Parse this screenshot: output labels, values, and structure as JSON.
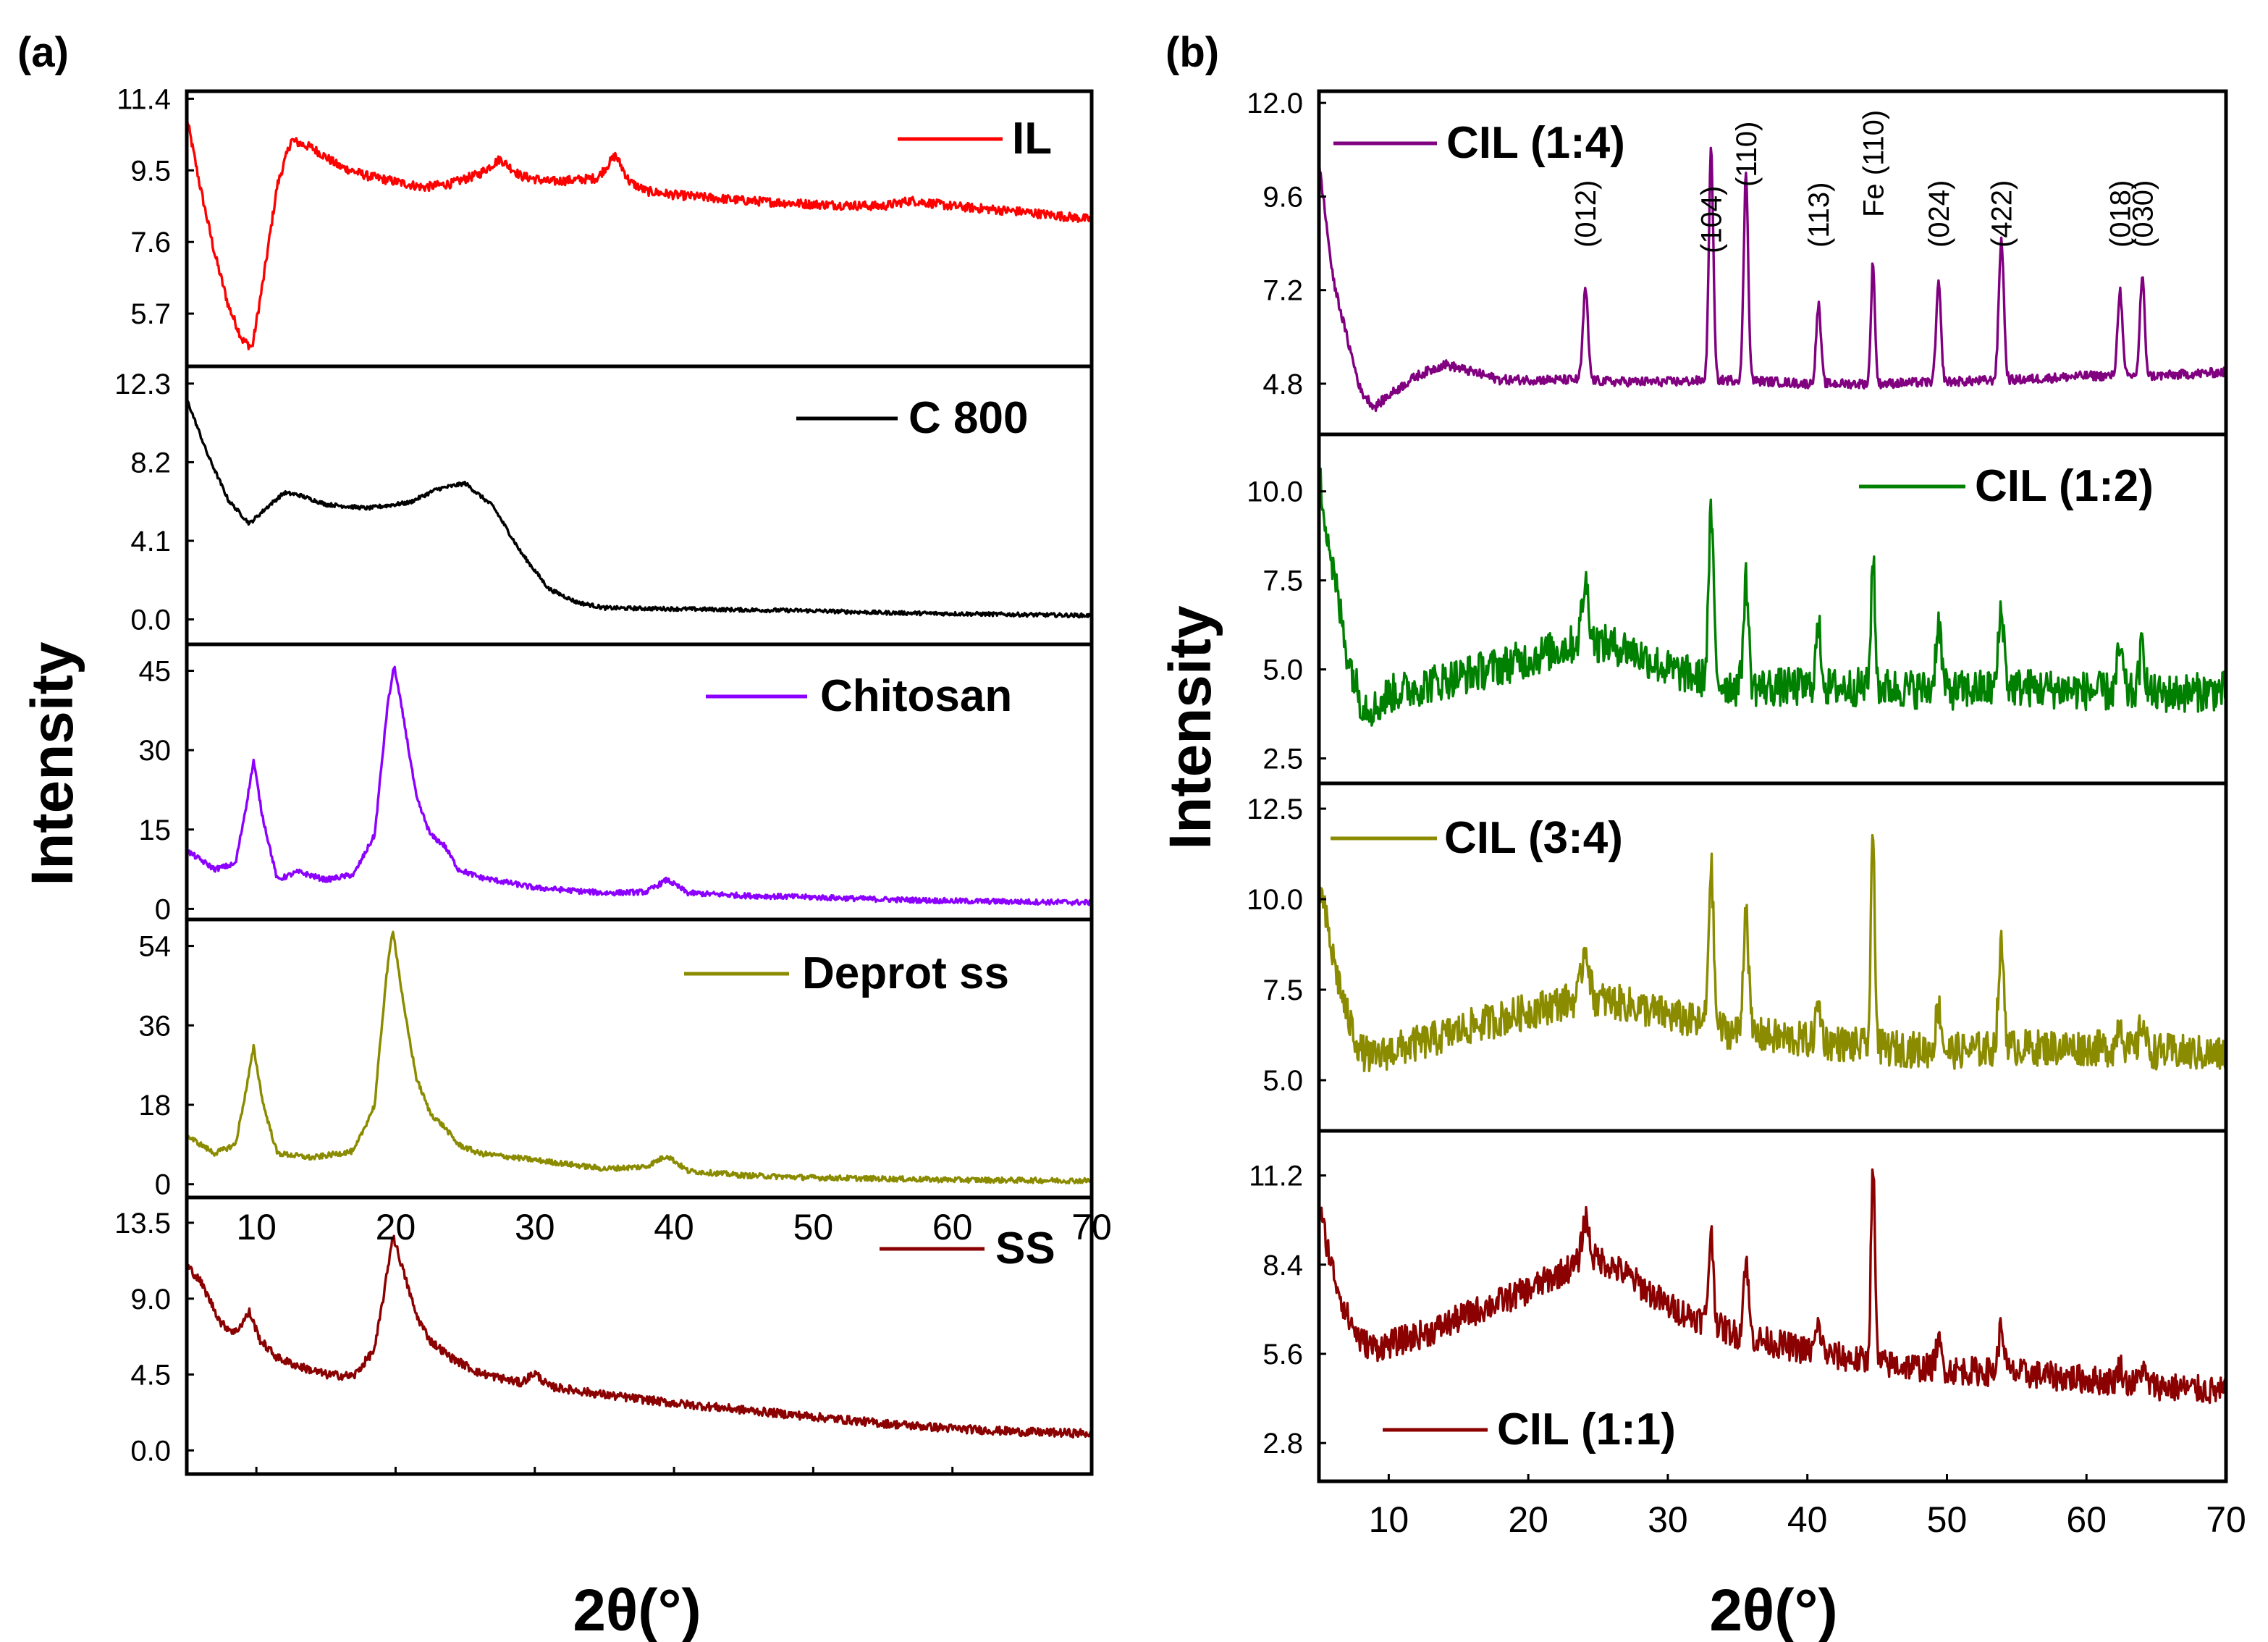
{
  "figure": {
    "panel_a_label": "(a)",
    "panel_b_label": "(b)",
    "ylabel": "Intensity",
    "xlabel": "2θ(°)"
  },
  "chart_data": [
    {
      "id": "a",
      "type": "line",
      "title": "(a)",
      "xlabel": "2θ(°)",
      "ylabel": "Intensity",
      "xlim": [
        5,
        70
      ],
      "xticks": [
        10,
        20,
        30,
        40,
        50,
        60,
        70
      ],
      "panels": [
        {
          "name": "IL",
          "color": "#ff0000",
          "ylim": [
            4.3,
            11.6
          ],
          "yticks": [
            "11.4",
            "9.5",
            "7.6",
            "5.7"
          ],
          "noise": 0.12,
          "x": [
            5,
            6,
            7,
            8,
            9,
            9.7,
            10.5,
            11.5,
            12.5,
            14,
            16,
            18,
            20,
            22,
            24,
            26,
            27.5,
            29,
            31,
            33,
            34.5,
            35.8,
            36.8,
            38,
            40,
            45,
            50,
            55,
            57,
            60,
            65,
            70
          ],
          "y": [
            10.9,
            9.0,
            7.3,
            5.9,
            5.0,
            4.8,
            6.6,
            9.1,
            10.3,
            10.1,
            9.6,
            9.35,
            9.2,
            9.05,
            9.15,
            9.4,
            9.8,
            9.35,
            9.2,
            9.25,
            9.3,
            9.9,
            9.2,
            8.95,
            8.85,
            8.7,
            8.6,
            8.55,
            8.7,
            8.55,
            8.4,
            8.2
          ]
        },
        {
          "name": "C 800",
          "color": "#000000",
          "ylim": [
            -1.3,
            13.2
          ],
          "yticks": [
            "12.3",
            "8.2",
            "4.1",
            "0.0"
          ],
          "noise": 0.1,
          "x": [
            5,
            6.5,
            8,
            9.5,
            11,
            12,
            13,
            15,
            18,
            21,
            23,
            25,
            27,
            29,
            31,
            33,
            35,
            40,
            45,
            50,
            55,
            60,
            65,
            70
          ],
          "y": [
            11.5,
            8.6,
            6.2,
            5.0,
            6.0,
            6.6,
            6.5,
            6.0,
            5.8,
            6.1,
            6.8,
            7.1,
            5.9,
            3.5,
            1.6,
            0.9,
            0.6,
            0.55,
            0.5,
            0.45,
            0.35,
            0.3,
            0.25,
            0.2
          ]
        },
        {
          "name": "Chitosan",
          "color": "#8b00ff",
          "ylim": [
            -2,
            50
          ],
          "yticks": [
            "45",
            "30",
            "15",
            "0"
          ],
          "noise": 0.5,
          "x": [
            5,
            7,
            8.5,
            9.3,
            9.8,
            10.4,
            11.5,
            13,
            15,
            17,
            18.5,
            19.4,
            19.9,
            20.7,
            21.5,
            22.5,
            23.5,
            24.5,
            26,
            28,
            30,
            35,
            38,
            39.5,
            41,
            45,
            50,
            55,
            60,
            70
          ],
          "y": [
            11,
            7.5,
            8.5,
            20,
            28,
            18,
            5.5,
            7,
            5.5,
            6.5,
            14,
            38,
            46,
            34,
            21,
            14,
            12,
            7.5,
            6,
            5,
            4,
            3,
            3.2,
            5.5,
            3,
            2.5,
            2.2,
            1.8,
            1.5,
            1.2
          ]
        },
        {
          "name": "Deprot ss",
          "color": "#8b8b00",
          "ylim": [
            -3,
            60
          ],
          "yticks": [
            "54",
            "36",
            "18",
            "0"
          ],
          "noise": 0.6,
          "x": [
            5,
            7,
            8.5,
            9.3,
            9.8,
            10.5,
            11.5,
            14,
            17,
            18.5,
            19.3,
            19.8,
            20.6,
            21.5,
            22.5,
            23.5,
            24.5,
            26,
            30,
            35,
            38,
            39.5,
            41,
            45,
            50,
            60,
            70
          ],
          "y": [
            11,
            7,
            9,
            22,
            31,
            18,
            7,
            6,
            7.5,
            18,
            46,
            58,
            40,
            24,
            16,
            13,
            9,
            7,
            5.5,
            3.5,
            4,
            6.5,
            3,
            2,
            1.5,
            1,
            0.8
          ]
        },
        {
          "name": "SS",
          "color": "#8b0000",
          "ylim": [
            -1.4,
            15
          ],
          "yticks": [
            "13.5",
            "9.0",
            "4.5",
            "0.0"
          ],
          "noise": 0.25,
          "x": [
            5,
            6,
            7.5,
            8.5,
            9.5,
            10.3,
            11.5,
            13,
            15,
            17,
            18.5,
            19.3,
            19.8,
            20.6,
            21.5,
            22.5,
            24,
            26,
            29,
            30,
            31,
            35,
            40,
            45,
            50,
            55,
            60,
            65,
            70
          ],
          "y": [
            11.0,
            10.0,
            7.5,
            7.0,
            8.2,
            6.5,
            5.5,
            5.0,
            4.5,
            4.4,
            6.0,
            10.0,
            12.8,
            10.5,
            8.0,
            6.5,
            5.5,
            4.6,
            4.0,
            4.6,
            3.8,
            3.3,
            2.8,
            2.4,
            2.0,
            1.6,
            1.3,
            1.1,
            1.0
          ]
        }
      ]
    },
    {
      "id": "b",
      "type": "line",
      "title": "(b)",
      "xlabel": "2θ(°)",
      "ylabel": "Intensity",
      "xlim": [
        5,
        70
      ],
      "xticks": [
        10,
        20,
        30,
        40,
        50,
        60,
        70
      ],
      "peaks": [
        {
          "label": "(012)",
          "x": 24.1,
          "color": "#000000"
        },
        {
          "label": "(104)",
          "x": 33.1,
          "color": "#000000"
        },
        {
          "label": "(110)",
          "x": 35.6,
          "color": "#000000"
        },
        {
          "label": "(113)",
          "x": 40.8,
          "color": "#000000"
        },
        {
          "label": "Fe (110)",
          "x": 44.7,
          "color": "#e8107f"
        },
        {
          "label": "(024)",
          "x": 49.4,
          "color": "#000000"
        },
        {
          "label": "(422)",
          "x": 53.9,
          "color": "#000000"
        },
        {
          "label": "(018)",
          "x": 62.4,
          "color": "#000000"
        },
        {
          "label": "(030)",
          "x": 64.0,
          "color": "#000000"
        }
      ],
      "panels": [
        {
          "name": "CIL (1:4)",
          "color": "#800080",
          "ylim": [
            3.5,
            12.3
          ],
          "yticks": [
            "12.0",
            "9.6",
            "7.2",
            "4.8"
          ],
          "noise": 0.12,
          "x": [
            5,
            6,
            7,
            8,
            9,
            10,
            12,
            14,
            16,
            18,
            20,
            22,
            24,
            26,
            30,
            35,
            40,
            45,
            50,
            55,
            60,
            65,
            70
          ],
          "y": [
            10.5,
            7.5,
            6.0,
            4.6,
            4.2,
            4.5,
            5.0,
            5.3,
            5.1,
            4.9,
            4.9,
            4.9,
            4.9,
            4.85,
            4.85,
            4.9,
            4.8,
            4.8,
            4.85,
            4.9,
            5.0,
            5.0,
            5.1
          ],
          "peaks": [
            [
              24.1,
              2.3,
              0.18
            ],
            [
              33.1,
              5.9,
              0.16
            ],
            [
              35.6,
              5.3,
              0.16
            ],
            [
              40.8,
              2.0,
              0.17
            ],
            [
              44.7,
              3.1,
              0.14
            ],
            [
              49.4,
              2.5,
              0.17
            ],
            [
              53.9,
              3.6,
              0.18
            ],
            [
              62.4,
              2.2,
              0.17
            ],
            [
              64.0,
              2.5,
              0.17
            ]
          ]
        },
        {
          "name": "CIL (1:2)",
          "color": "#008000",
          "ylim": [
            1.8,
            11.6
          ],
          "yticks": [
            "10.0",
            "7.5",
            "5.0",
            "2.5"
          ],
          "noise": 0.55,
          "x": [
            5,
            6,
            7,
            8,
            9,
            10,
            13,
            16,
            20,
            24,
            27,
            30,
            35,
            40,
            45,
            50,
            55,
            60,
            65,
            70
          ],
          "y": [
            10.5,
            7.8,
            5.5,
            4.1,
            3.9,
            4.3,
            4.6,
            4.9,
            5.3,
            5.8,
            5.6,
            5.0,
            4.5,
            4.5,
            4.5,
            4.4,
            4.5,
            4.4,
            4.3,
            4.4
          ],
          "peaks": [
            [
              24.1,
              1.6,
              0.25
            ],
            [
              33.1,
              4.6,
              0.18
            ],
            [
              35.6,
              3.0,
              0.18
            ],
            [
              40.8,
              1.6,
              0.2
            ],
            [
              44.7,
              3.7,
              0.14
            ],
            [
              49.4,
              1.9,
              0.2
            ],
            [
              53.9,
              2.2,
              0.2
            ],
            [
              62.4,
              1.2,
              0.2
            ],
            [
              64.0,
              1.3,
              0.2
            ]
          ]
        },
        {
          "name": "CIL (3:4)",
          "color": "#8b8b00",
          "ylim": [
            3.6,
            13.2
          ],
          "yticks": [
            "12.5",
            "10.0",
            "7.5",
            "5.0"
          ],
          "noise": 0.5,
          "x": [
            5,
            6,
            7,
            8,
            9,
            10,
            13,
            16,
            20,
            24,
            27,
            30,
            35,
            40,
            45,
            50,
            55,
            60,
            65,
            70
          ],
          "y": [
            10.5,
            8.4,
            6.8,
            5.8,
            5.6,
            5.8,
            6.1,
            6.5,
            6.9,
            7.3,
            7.1,
            6.8,
            6.3,
            6.1,
            5.9,
            5.8,
            5.9,
            5.9,
            5.8,
            5.7
          ],
          "peaks": [
            [
              24.1,
              1.4,
              0.25
            ],
            [
              33.1,
              4.4,
              0.18
            ],
            [
              35.6,
              3.6,
              0.18
            ],
            [
              40.8,
              1.0,
              0.2
            ],
            [
              44.7,
              5.9,
              0.14
            ],
            [
              49.4,
              1.2,
              0.2
            ],
            [
              53.9,
              2.8,
              0.2
            ],
            [
              62.4,
              0.8,
              0.2
            ],
            [
              64.0,
              0.8,
              0.2
            ]
          ]
        },
        {
          "name": "CIL (1:1)",
          "color": "#8b0000",
          "ylim": [
            1.6,
            12.6
          ],
          "yticks": [
            "11.2",
            "8.4",
            "5.6",
            "2.8"
          ],
          "noise": 0.45,
          "x": [
            5,
            6,
            7,
            8,
            9,
            10,
            13,
            16,
            20,
            23,
            25,
            27,
            30,
            35,
            40,
            45,
            50,
            55,
            60,
            65,
            70
          ],
          "y": [
            10.2,
            8.2,
            6.8,
            6.0,
            5.8,
            5.9,
            6.3,
            6.9,
            7.6,
            8.3,
            8.6,
            8.1,
            7.1,
            6.2,
            5.7,
            5.3,
            5.1,
            5.0,
            4.8,
            4.6,
            4.4
          ],
          "peaks": [
            [
              24.1,
              1.4,
              0.25
            ],
            [
              33.1,
              2.8,
              0.18
            ],
            [
              35.6,
              2.4,
              0.18
            ],
            [
              40.8,
              0.8,
              0.2
            ],
            [
              44.7,
              6.3,
              0.14
            ],
            [
              49.4,
              0.8,
              0.2
            ],
            [
              53.9,
              1.4,
              0.2
            ],
            [
              62.4,
              0.5,
              0.2
            ],
            [
              64.0,
              0.5,
              0.2
            ]
          ]
        }
      ]
    }
  ]
}
